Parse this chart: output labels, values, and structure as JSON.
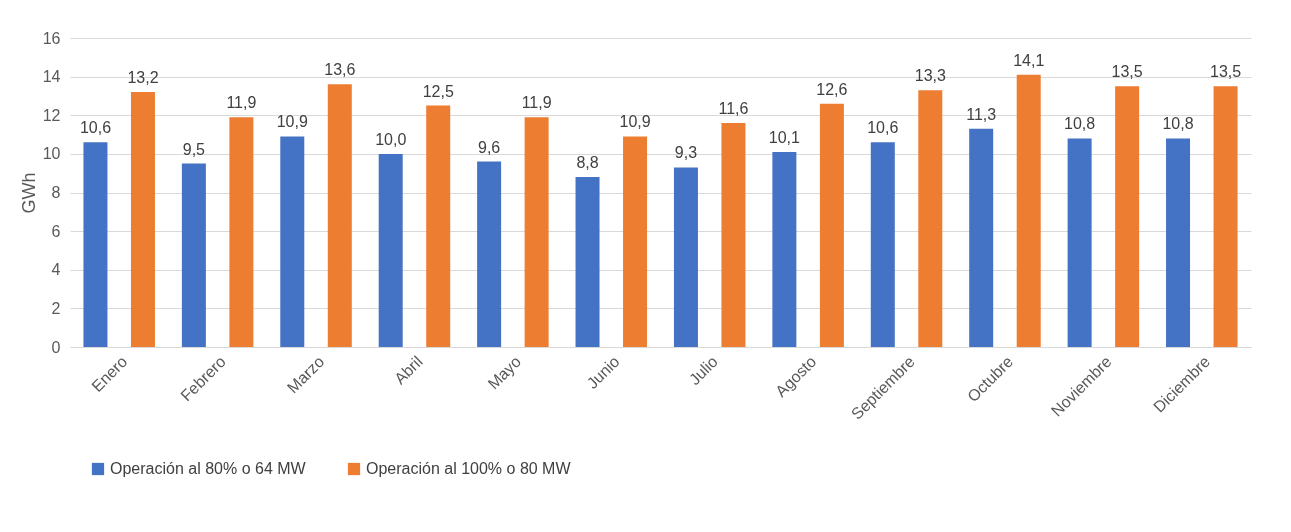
{
  "chart_data": {
    "type": "bar",
    "ylabel": "GWh",
    "categories": [
      "Enero",
      "Febrero",
      "Marzo",
      "Abril",
      "Mayo",
      "Junio",
      "Julio",
      "Agosto",
      "Septiembre",
      "Octubre",
      "Noviembre",
      "Diciembre"
    ],
    "series": [
      {
        "name": "Operación al 80% o 64 MW",
        "color": "#4472c4",
        "values": [
          10.6,
          9.5,
          10.9,
          10.0,
          9.6,
          8.8,
          9.3,
          10.1,
          10.6,
          11.3,
          10.8,
          10.8
        ],
        "value_labels": [
          "10,6",
          "9,5",
          "10,9",
          "10,0",
          "9,6",
          "8,8",
          "9,3",
          "10,1",
          "10,6",
          "11,3",
          "10,8",
          "10,8"
        ]
      },
      {
        "name": "Operación al 100% o 80 MW",
        "color": "#ed7d31",
        "values": [
          13.2,
          11.9,
          13.6,
          12.5,
          11.9,
          10.9,
          11.6,
          12.6,
          13.3,
          14.1,
          13.5,
          13.5
        ],
        "value_labels": [
          "13,2",
          "11,9",
          "13,6",
          "12,5",
          "11,9",
          "10,9",
          "11,6",
          "12,6",
          "13,3",
          "14,1",
          "13,5",
          "13,5"
        ]
      }
    ],
    "ylim": [
      0,
      16
    ],
    "yticks": [
      0,
      2,
      4,
      6,
      8,
      10,
      12,
      14,
      16
    ],
    "grid": "y",
    "legend": "bottom"
  }
}
